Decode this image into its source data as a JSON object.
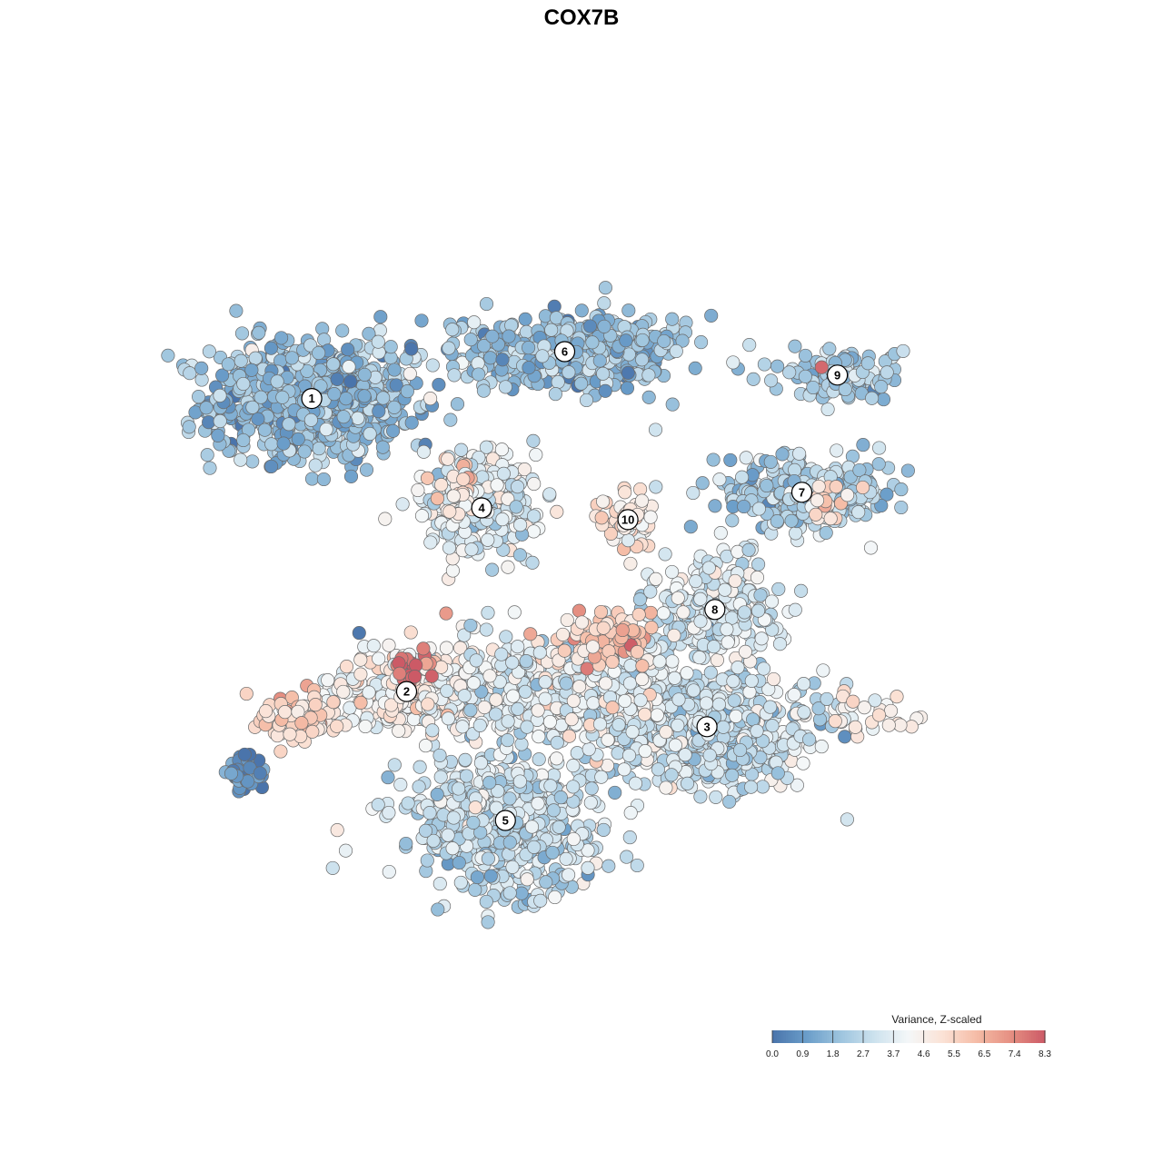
{
  "chart_data": {
    "type": "scatter",
    "title": "COX7B",
    "xlabel": "",
    "ylabel": "",
    "grid": false,
    "x_range": [
      0,
      100
    ],
    "y_range": [
      0,
      100
    ],
    "legend": {
      "title": "Variance, Z-scaled",
      "placement": "bottom-right",
      "ticks": [
        "0.0",
        "0.9",
        "1.8",
        "2.7",
        "3.7",
        "4.6",
        "5.5",
        "6.5",
        "7.4",
        "8.3"
      ],
      "colors": [
        "#4a74ab",
        "#6a9dc9",
        "#9dc4de",
        "#cde2ee",
        "#f4f7f8",
        "#fbe2d6",
        "#f5bca6",
        "#e58f82",
        "#cc5a66"
      ]
    },
    "clusters": [
      {
        "label": "1",
        "x": 13.0,
        "y": 74.0,
        "spread_x": 11.5,
        "spread_y": 6.8,
        "n": 900,
        "mean_value": 2.0
      },
      {
        "label": "2",
        "x": 25.0,
        "y": 36.5,
        "spread_x": 8.5,
        "spread_y": 4.2,
        "n": 260,
        "mean_value": 4.4
      },
      {
        "label": "3",
        "x": 63.0,
        "y": 32.0,
        "spread_x": 13.5,
        "spread_y": 7.0,
        "n": 620,
        "mean_value": 3.1
      },
      {
        "label": "4",
        "x": 34.5,
        "y": 60.0,
        "spread_x": 6.5,
        "spread_y": 5.5,
        "n": 280,
        "mean_value": 3.5
      },
      {
        "label": "5",
        "x": 37.5,
        "y": 20.0,
        "spread_x": 11.0,
        "spread_y": 7.5,
        "n": 560,
        "mean_value": 2.9
      },
      {
        "label": "6",
        "x": 45.0,
        "y": 80.0,
        "spread_x": 13.0,
        "spread_y": 4.5,
        "n": 480,
        "mean_value": 2.1
      },
      {
        "label": "7",
        "x": 75.0,
        "y": 62.0,
        "spread_x": 10.5,
        "spread_y": 4.0,
        "n": 280,
        "mean_value": 2.5
      },
      {
        "label": "8",
        "x": 64.0,
        "y": 47.0,
        "spread_x": 7.0,
        "spread_y": 6.0,
        "n": 260,
        "mean_value": 3.4
      },
      {
        "label": "9",
        "x": 79.5,
        "y": 77.0,
        "spread_x": 7.0,
        "spread_y": 3.2,
        "n": 110,
        "mean_value": 2.5
      },
      {
        "label": "10",
        "x": 53.0,
        "y": 58.5,
        "spread_x": 3.2,
        "spread_y": 3.5,
        "n": 60,
        "mean_value": 4.8
      },
      {
        "label": "",
        "x": 44.0,
        "y": 37.0,
        "spread_x": 13.0,
        "spread_y": 5.5,
        "n": 620,
        "mean_value": 3.7
      },
      {
        "label": "",
        "x": 4.5,
        "y": 26.0,
        "spread_x": 3.0,
        "spread_y": 2.2,
        "n": 40,
        "mean_value": 0.6
      }
    ],
    "hotspots": [
      {
        "x": 26.0,
        "y": 40.0,
        "spread_x": 2.5,
        "spread_y": 2.5,
        "n": 20,
        "mean_value": 8.0
      },
      {
        "x": 50.0,
        "y": 43.5,
        "spread_x": 5.5,
        "spread_y": 3.0,
        "n": 90,
        "mean_value": 5.8
      },
      {
        "x": 11.5,
        "y": 33.5,
        "spread_x": 4.5,
        "spread_y": 2.6,
        "n": 80,
        "mean_value": 5.5
      },
      {
        "x": 32.0,
        "y": 62.0,
        "spread_x": 2.8,
        "spread_y": 3.5,
        "n": 30,
        "mean_value": 5.4
      },
      {
        "x": 77.5,
        "y": 60.5,
        "spread_x": 3.0,
        "spread_y": 2.0,
        "n": 20,
        "mean_value": 5.4
      },
      {
        "x": 84.0,
        "y": 33.5,
        "spread_x": 6.0,
        "spread_y": 2.2,
        "n": 30,
        "mean_value": 4.8
      }
    ],
    "outliers": [
      {
        "x": 19.0,
        "y": 44.0,
        "value": 0.1
      },
      {
        "x": 77.5,
        "y": 78.0,
        "value": 8.0
      },
      {
        "x": 30.0,
        "y": 46.5,
        "value": 7.0
      },
      {
        "x": 28.0,
        "y": 74.0,
        "value": 4.6
      },
      {
        "x": 56.5,
        "y": 70.0,
        "value": 3.2
      }
    ]
  }
}
